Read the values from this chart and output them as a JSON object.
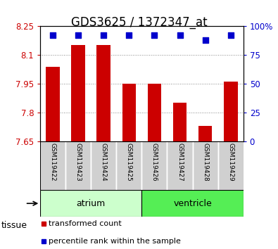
{
  "title": "GDS3625 / 1372347_at",
  "samples": [
    "GSM119422",
    "GSM119423",
    "GSM119424",
    "GSM119425",
    "GSM119426",
    "GSM119427",
    "GSM119428",
    "GSM119429"
  ],
  "transformed_counts": [
    8.04,
    8.15,
    8.15,
    7.95,
    7.95,
    7.85,
    7.73,
    7.96
  ],
  "percentile_ranks": [
    92,
    92,
    92,
    92,
    92,
    92,
    88,
    92
  ],
  "ylim_left": [
    7.65,
    8.25
  ],
  "ylim_right": [
    0,
    100
  ],
  "yticks_left": [
    7.65,
    7.8,
    7.95,
    8.1,
    8.25
  ],
  "yticks_right": [
    0,
    25,
    50,
    75,
    100
  ],
  "ytick_labels_left": [
    "7.65",
    "7.8",
    "7.95",
    "8.1",
    "8.25"
  ],
  "ytick_labels_right": [
    "0",
    "25",
    "50",
    "75",
    "100%"
  ],
  "tissue_groups": [
    {
      "label": "atrium",
      "start": 0,
      "end": 4,
      "color": "#ccffcc"
    },
    {
      "label": "ventricle",
      "start": 4,
      "end": 8,
      "color": "#55ee55"
    }
  ],
  "sample_bg_color": "#d0d0d0",
  "bar_color": "#cc0000",
  "dot_color": "#0000cc",
  "bar_width": 0.55,
  "dot_size": 35,
  "grid_color": "#888888",
  "left_tick_color": "#cc0000",
  "right_tick_color": "#0000cc",
  "legend_bar_label": "transformed count",
  "legend_dot_label": "percentile rank within the sample",
  "title_fontsize": 12,
  "tick_fontsize": 8.5,
  "sample_fontsize": 6.5,
  "tissue_fontsize": 9,
  "legend_fontsize": 8
}
